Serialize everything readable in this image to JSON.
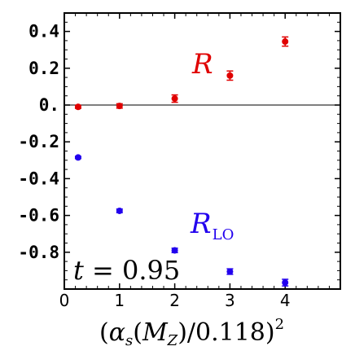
{
  "chart_data": {
    "type": "scatter",
    "xlim": [
      0,
      5
    ],
    "ylim": [
      -1.0,
      0.5
    ],
    "xticks": [
      "0",
      "1",
      "2",
      "3",
      "4"
    ],
    "yticks": [
      "0.4",
      "0.2",
      "0.",
      "-0.2",
      "-0.4",
      "-0.6",
      "-0.8"
    ],
    "ytick_values": [
      0.4,
      0.2,
      0.0,
      -0.2,
      -0.4,
      -0.6,
      -0.8
    ],
    "xtick_values": [
      0,
      1,
      2,
      3,
      4
    ],
    "xlabel": "(αs(MZ)/0.118)²",
    "ylabel": "",
    "annotation": "t = 0.95",
    "reference_line_y": 0,
    "grid": false,
    "series": [
      {
        "name": "R",
        "color": "#e00000",
        "x": [
          0.25,
          1,
          2,
          3,
          4
        ],
        "y": [
          -0.01,
          -0.005,
          0.035,
          0.16,
          0.345
        ],
        "err": [
          0.008,
          0.012,
          0.02,
          0.025,
          0.025
        ]
      },
      {
        "name": "RLO",
        "color": "#2200ee",
        "x": [
          0.25,
          1,
          2,
          3,
          4
        ],
        "y": [
          -0.285,
          -0.575,
          -0.79,
          -0.905,
          -0.965
        ],
        "err": [
          0.006,
          0.01,
          0.012,
          0.015,
          0.018
        ]
      }
    ]
  }
}
